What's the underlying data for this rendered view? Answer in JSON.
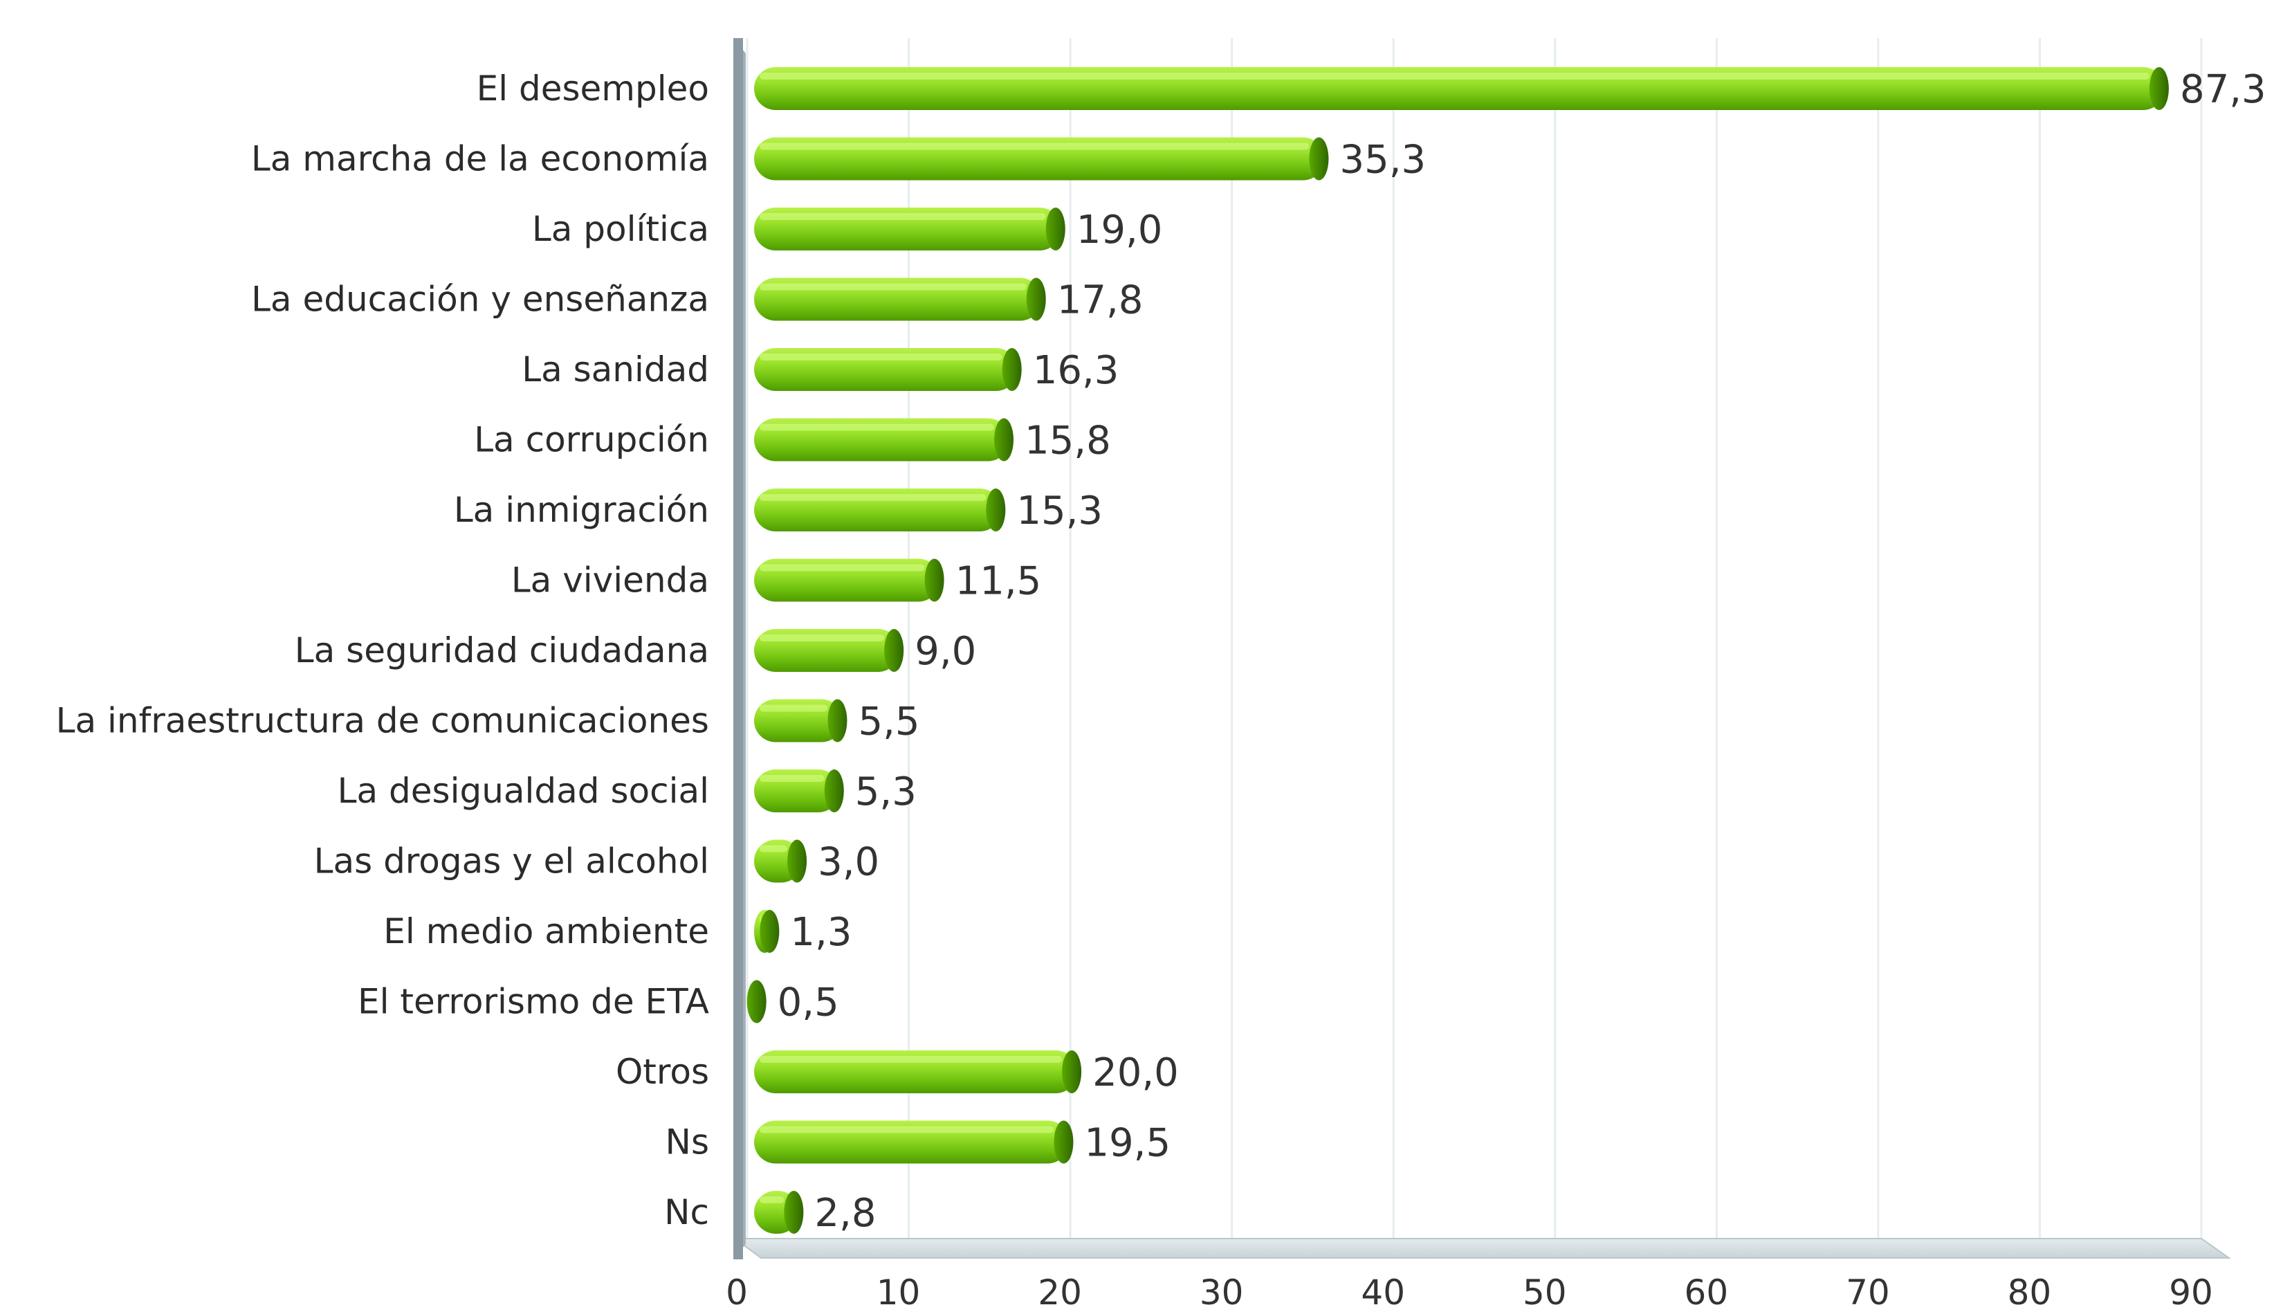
{
  "chart_data": {
    "type": "bar",
    "orientation": "horizontal",
    "categories": [
      "El desempleo",
      "La marcha de la economía",
      "La política",
      "La educación y enseñanza",
      "La sanidad",
      "La corrupción",
      "La inmigración",
      "La vivienda",
      "La seguridad ciudadana",
      "La infraestructura de comunicaciones",
      "La desigualdad social",
      "Las drogas y el alcohol",
      "El medio ambiente",
      "El terrorismo de ETA",
      "Otros",
      "Ns",
      "Nc"
    ],
    "values": [
      87.3,
      35.3,
      19.0,
      17.8,
      16.3,
      15.8,
      15.3,
      11.5,
      9.0,
      5.5,
      5.3,
      3.0,
      1.3,
      0.5,
      20.0,
      19.5,
      2.8
    ],
    "value_labels": [
      "87,3",
      "35,3",
      "19,0",
      "17,8",
      "16,3",
      "15,8",
      "15,3",
      "11,5",
      "9,0",
      "5,5",
      "5,3",
      "3,0",
      "1,3",
      "0,5",
      "20,0",
      "19,5",
      "2,8"
    ],
    "x_ticks": [
      "0",
      "10",
      "20",
      "30",
      "40",
      "50",
      "60",
      "70",
      "80",
      "90"
    ],
    "xlim": [
      0,
      90
    ],
    "title": "",
    "xlabel": "",
    "ylabel": "",
    "grid": true,
    "colors": {
      "bar_light": "#b8f04a",
      "bar_mid": "#7acc14",
      "bar_dark": "#4f9a00",
      "bar_cap": "#3f7f00",
      "axis_wall": "#8f9ea6",
      "floor": "#d7e0e4",
      "grid": "#e6ecef"
    }
  }
}
